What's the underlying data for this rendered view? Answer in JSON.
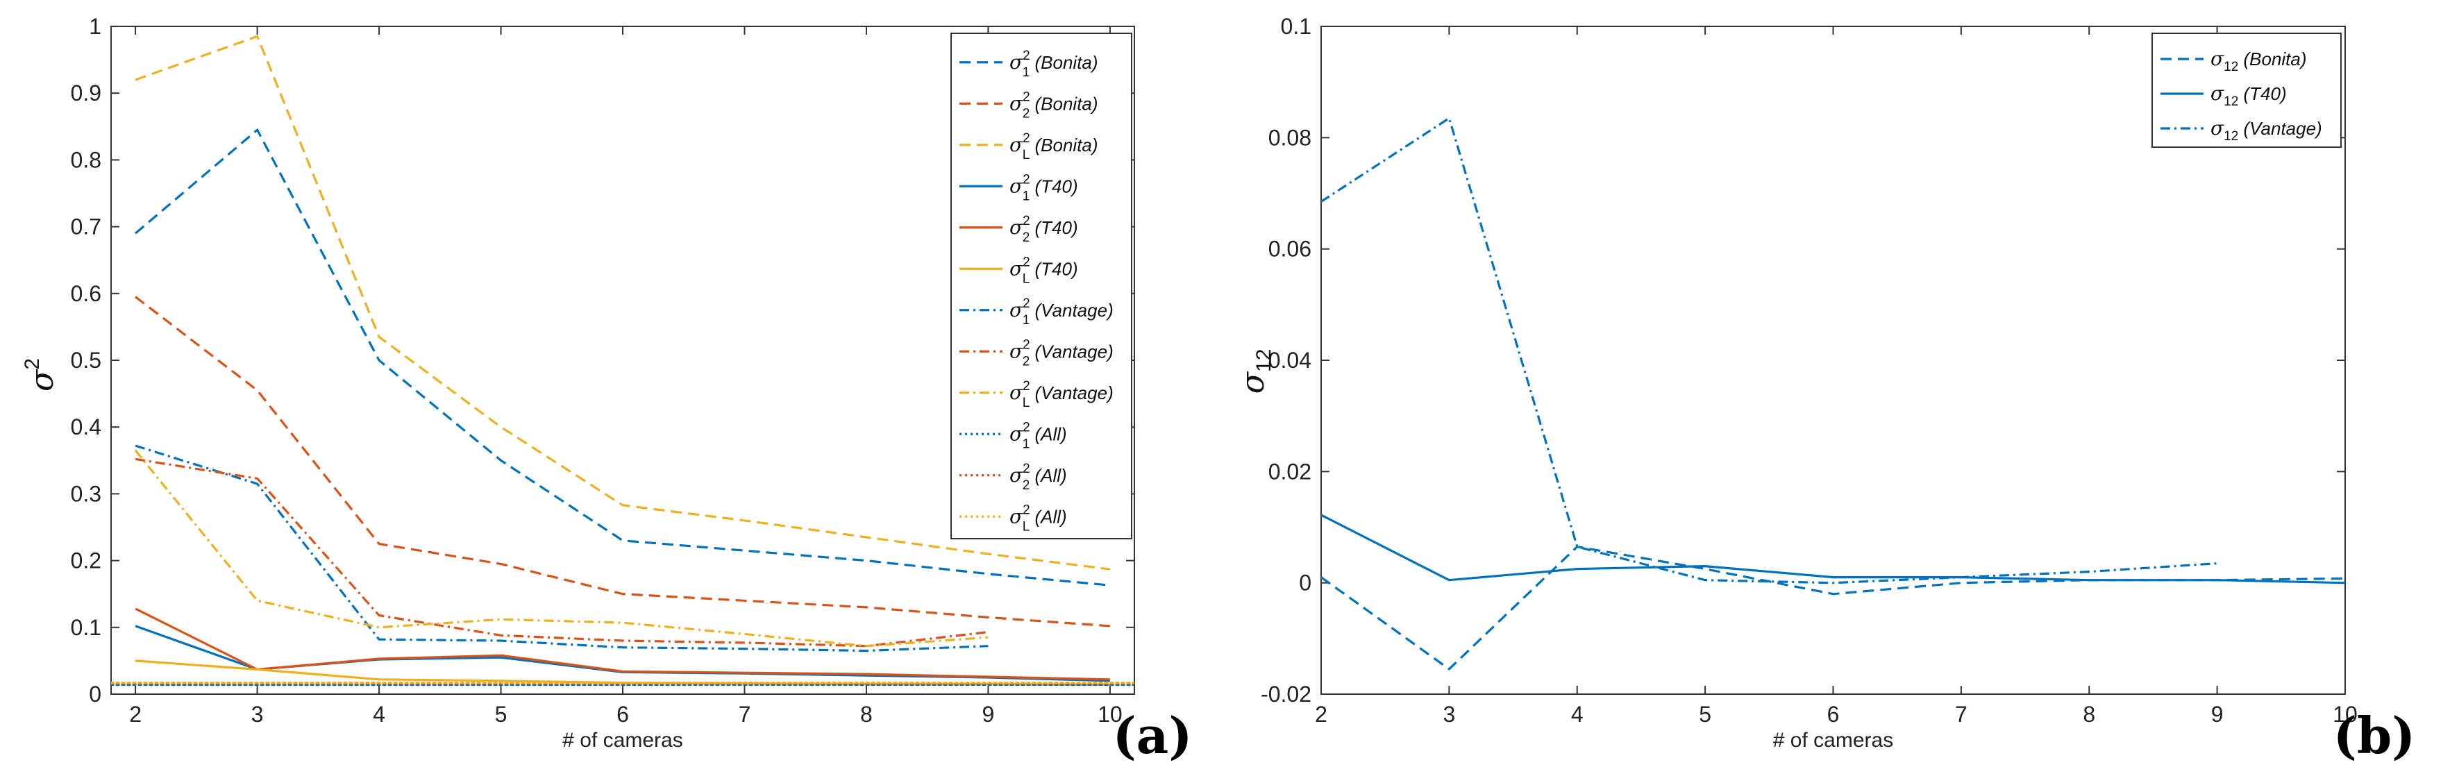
{
  "chart_data": [
    {
      "type": "line",
      "panel_label": "(a)",
      "xlabel": "# of cameras",
      "ylabel": {
        "symbol": "σ",
        "sup": "2"
      },
      "xlim": [
        1.8,
        10.2
      ],
      "ylim": [
        0,
        1
      ],
      "xticks": [
        "2",
        "3",
        "4",
        "5",
        "6",
        "7",
        "8",
        "9",
        "10"
      ],
      "yticks": [
        "0",
        "0.1",
        "0.2",
        "0.3",
        "0.4",
        "0.5",
        "0.6",
        "0.7",
        "0.8",
        "0.9",
        "1"
      ],
      "legend_position": "top-right",
      "series": [
        {
          "name": "σ1² (Bonita)",
          "sym": "σ",
          "sup": "2",
          "sub": "1",
          "label": "(Bonita)",
          "color": "#0072BD",
          "style": "dashed",
          "x": [
            2,
            3,
            4,
            5,
            6,
            7,
            8,
            9,
            10
          ],
          "values": [
            0.69,
            0.845,
            0.5,
            0.35,
            0.23,
            0.215,
            0.2,
            0.18,
            0.163
          ]
        },
        {
          "name": "σ2² (Bonita)",
          "sym": "σ",
          "sup": "2",
          "sub": "2",
          "label": "(Bonita)",
          "color": "#D95319",
          "style": "dashed",
          "x": [
            2,
            3,
            4,
            5,
            6,
            7,
            8,
            9,
            10
          ],
          "values": [
            0.595,
            0.455,
            0.225,
            0.195,
            0.15,
            0.14,
            0.13,
            0.115,
            0.102
          ]
        },
        {
          "name": "σL² (Bonita)",
          "sym": "σ",
          "sup": "2",
          "sub": "L",
          "label": "(Bonita)",
          "color": "#EDB120",
          "style": "dashed",
          "x": [
            2,
            3,
            4,
            5,
            6,
            7,
            8,
            9,
            10
          ],
          "values": [
            0.92,
            0.985,
            0.535,
            0.4,
            0.283,
            0.26,
            0.235,
            0.21,
            0.187
          ]
        },
        {
          "name": "σ1² (T40)",
          "sym": "σ",
          "sup": "2",
          "sub": "1",
          "label": "(T40)",
          "color": "#0072BD",
          "style": "solid",
          "x": [
            2,
            3,
            4,
            5,
            6,
            7,
            8,
            9,
            10
          ],
          "values": [
            0.102,
            0.037,
            0.052,
            0.055,
            0.033,
            0.031,
            0.028,
            0.025,
            0.02
          ]
        },
        {
          "name": "σ2² (T40)",
          "sym": "σ",
          "sup": "2",
          "sub": "2",
          "label": "(T40)",
          "color": "#D95319",
          "style": "solid",
          "x": [
            2,
            3,
            4,
            5,
            6,
            7,
            8,
            9,
            10
          ],
          "values": [
            0.128,
            0.037,
            0.053,
            0.058,
            0.034,
            0.032,
            0.03,
            0.026,
            0.022
          ]
        },
        {
          "name": "σL² (T40)",
          "sym": "σ",
          "sup": "2",
          "sub": "L",
          "label": "(T40)",
          "color": "#EDB120",
          "style": "solid",
          "x": [
            2,
            3,
            4,
            5,
            6,
            7,
            8,
            9,
            10
          ],
          "values": [
            0.05,
            0.037,
            0.022,
            0.02,
            0.017,
            0.016,
            0.015,
            0.015,
            0.014
          ]
        },
        {
          "name": "σ1² (Vantage)",
          "sym": "σ",
          "sup": "2",
          "sub": "1",
          "label": "(Vantage)",
          "color": "#0072BD",
          "style": "dashdot",
          "x": [
            2,
            3,
            4,
            5,
            6,
            7,
            8,
            9
          ],
          "values": [
            0.372,
            0.315,
            0.082,
            0.08,
            0.07,
            0.068,
            0.065,
            0.072
          ]
        },
        {
          "name": "σ2² (Vantage)",
          "sym": "σ",
          "sup": "2",
          "sub": "2",
          "label": "(Vantage)",
          "color": "#D95319",
          "style": "dashdot",
          "x": [
            2,
            3,
            4,
            5,
            6,
            7,
            8,
            9
          ],
          "values": [
            0.352,
            0.323,
            0.118,
            0.088,
            0.08,
            0.077,
            0.072,
            0.093
          ]
        },
        {
          "name": "σL² (Vantage)",
          "sym": "σ",
          "sup": "2",
          "sub": "L",
          "label": "(Vantage)",
          "color": "#EDB120",
          "style": "dashdot",
          "x": [
            2,
            3,
            4,
            5,
            6,
            7,
            8,
            9
          ],
          "values": [
            0.365,
            0.14,
            0.1,
            0.112,
            0.107,
            0.09,
            0.072,
            0.085
          ]
        },
        {
          "name": "σ1² (All)",
          "sym": "σ",
          "sup": "2",
          "sub": "1",
          "label": "(All)",
          "color": "#0072BD",
          "style": "dotted",
          "x": [
            1.8,
            10.2
          ],
          "values": [
            0.014,
            0.014
          ]
        },
        {
          "name": "σ2² (All)",
          "sym": "σ",
          "sup": "2",
          "sub": "2",
          "label": "(All)",
          "color": "#D95319",
          "style": "dotted",
          "x": [
            1.8,
            10.2
          ],
          "values": [
            0.016,
            0.016
          ]
        },
        {
          "name": "σL² (All)",
          "sym": "σ",
          "sup": "2",
          "sub": "L",
          "label": "(All)",
          "color": "#EDB120",
          "style": "dotted",
          "x": [
            1.8,
            10.2
          ],
          "values": [
            0.017,
            0.017
          ]
        }
      ]
    },
    {
      "type": "line",
      "panel_label": "(b)",
      "xlabel": "# of cameras",
      "ylabel": {
        "symbol": "σ",
        "sub": "12"
      },
      "xlim": [
        2,
        10
      ],
      "ylim": [
        -0.02,
        0.1
      ],
      "xticks": [
        "2",
        "3",
        "4",
        "5",
        "6",
        "7",
        "8",
        "9",
        "10"
      ],
      "yticks": [
        "-0.02",
        "0",
        "0.02",
        "0.04",
        "0.06",
        "0.08",
        "0.1"
      ],
      "legend_position": "top-right",
      "series": [
        {
          "name": "σ12 (Bonita)",
          "sym": "σ",
          "sub": "12",
          "label": "(Bonita)",
          "color": "#0072BD",
          "style": "dashed",
          "x": [
            2,
            3,
            4,
            5,
            6,
            7,
            8,
            9,
            10
          ],
          "values": [
            0.001,
            -0.0155,
            0.0065,
            0.0025,
            -0.002,
            0.0,
            0.0005,
            0.0005,
            0.0008
          ]
        },
        {
          "name": "σ12 (T40)",
          "sym": "σ",
          "sub": "12",
          "label": "(T40)",
          "color": "#0072BD",
          "style": "solid",
          "x": [
            2,
            3,
            4,
            5,
            6,
            7,
            8,
            9,
            10
          ],
          "values": [
            0.0122,
            0.0005,
            0.0025,
            0.003,
            0.001,
            0.001,
            0.0005,
            0.0005,
            0.0
          ]
        },
        {
          "name": "σ12 (Vantage)",
          "sym": "σ",
          "sub": "12",
          "label": "(Vantage)",
          "color": "#0072BD",
          "style": "dashdot",
          "x": [
            2,
            3,
            4,
            5,
            6,
            7,
            8,
            9
          ],
          "values": [
            0.0685,
            0.0835,
            0.0065,
            0.0005,
            0.0,
            0.001,
            0.002,
            0.0035
          ]
        }
      ]
    }
  ]
}
